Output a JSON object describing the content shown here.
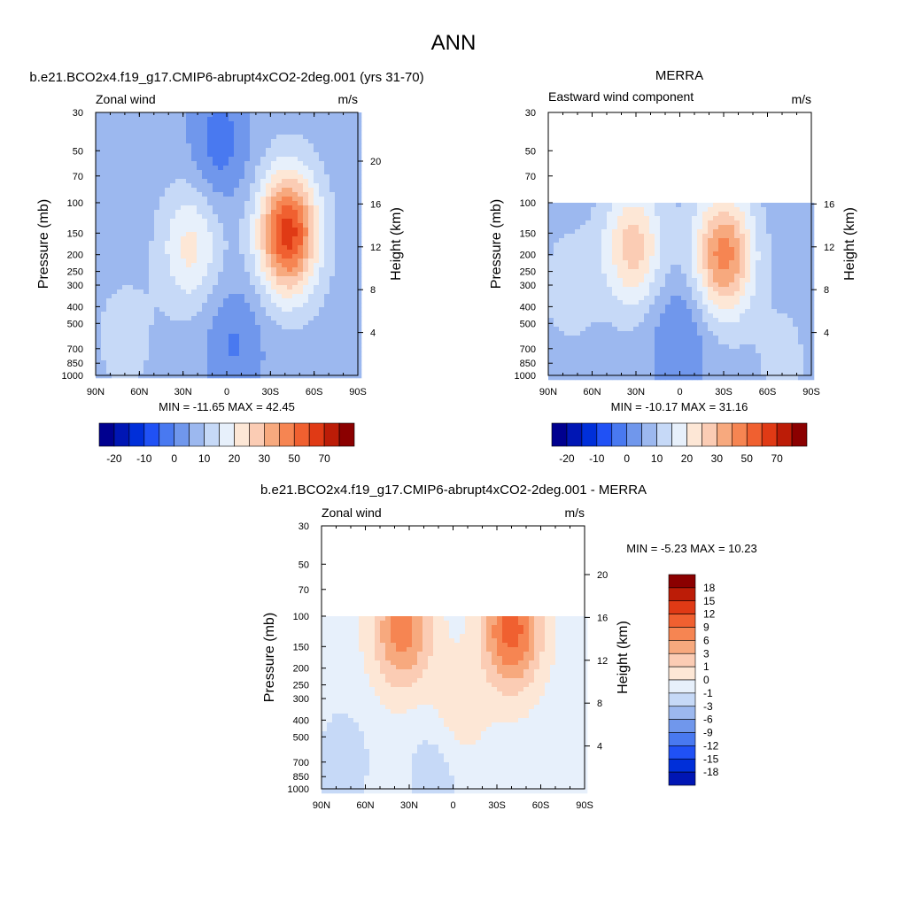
{
  "page_title": "ANN",
  "palette": [
    "#00008f",
    "#0016b4",
    "#002fd9",
    "#2051f5",
    "#4979f0",
    "#7097ec",
    "#9cb8ef",
    "#c6d9f7",
    "#e7f0fb",
    "#fde7d6",
    "#fbccb4",
    "#f7a97e",
    "#f68552",
    "#f06030",
    "#e03a15",
    "#bc1c07",
    "#8b0000"
  ],
  "neutral_color": "#ffffff",
  "chart_data": [
    {
      "type": "heatmap",
      "title": "b.e21.BCO2x4.f19_g17.CMIP6-abrupt4xCO2-2deg.001 (yrs 31-70)",
      "left_label": "Zonal wind",
      "units": "m/s",
      "ylabel": "Pressure (mb)",
      "ylabel_right": "Height (km)",
      "x_ticks": [
        "90N",
        "60N",
        "30N",
        "0",
        "30S",
        "60S",
        "90S"
      ],
      "y_ticks": [
        "30",
        "50",
        "70",
        "100",
        "150",
        "200",
        "250",
        "300",
        "400",
        "500",
        "700",
        "850",
        "1000"
      ],
      "y_right_ticks": [
        "20",
        "16",
        "12",
        "8",
        "4"
      ],
      "ylim": [
        1000,
        30
      ],
      "stats": "MIN = -11.65  MAX =  42.45",
      "colorbar_labels": [
        "-20",
        "-10",
        "0",
        "10",
        "20",
        "30",
        "50",
        "70"
      ],
      "data_top_mb": 30,
      "features": [
        {
          "lat": 25,
          "p": 180,
          "value": 14
        },
        {
          "lat": -42,
          "p": 150,
          "value": 40
        },
        {
          "lat": 5,
          "p": 45,
          "value": -10
        },
        {
          "lat": -5,
          "p": 650,
          "value": -8
        },
        {
          "lat": 70,
          "p": 600,
          "value": 5
        }
      ]
    },
    {
      "type": "heatmap",
      "title": "MERRA",
      "left_label": "Eastward wind component",
      "units": "m/s",
      "ylabel": "Pressure (mb)",
      "ylabel_right": "Height (km)",
      "x_ticks": [
        "90N",
        "60N",
        "30N",
        "0",
        "30S",
        "60S",
        "90S"
      ],
      "y_ticks": [
        "30",
        "50",
        "70",
        "100",
        "150",
        "200",
        "250",
        "300",
        "400",
        "500",
        "700",
        "850",
        "1000"
      ],
      "y_right_ticks": [
        "16",
        "12",
        "8",
        "4"
      ],
      "ylim": [
        1000,
        30
      ],
      "stats": "MIN = -10.17  MAX =  31.16",
      "colorbar_labels": [
        "-20",
        "-10",
        "0",
        "10",
        "20",
        "30",
        "50",
        "70"
      ],
      "data_top_mb": 100,
      "features": [
        {
          "lat": 32,
          "p": 180,
          "value": 20
        },
        {
          "lat": -30,
          "p": 200,
          "value": 30
        },
        {
          "lat": 0,
          "p": 600,
          "value": -8
        },
        {
          "lat": -70,
          "p": 800,
          "value": 4
        },
        {
          "lat": 75,
          "p": 300,
          "value": 5
        }
      ]
    },
    {
      "type": "heatmap",
      "title": "b.e21.BCO2x4.f19_g17.CMIP6-abrupt4xCO2-2deg.001 - MERRA",
      "left_label": "Zonal wind",
      "units": "m/s",
      "ylabel": "Pressure (mb)",
      "ylabel_right": "Height (km)",
      "x_ticks": [
        "90N",
        "60N",
        "30N",
        "0",
        "30S",
        "60S",
        "90S"
      ],
      "y_ticks": [
        "30",
        "50",
        "70",
        "100",
        "150",
        "200",
        "250",
        "300",
        "400",
        "500",
        "700",
        "850",
        "1000"
      ],
      "y_right_ticks": [
        "20",
        "16",
        "12",
        "8",
        "4"
      ],
      "ylim": [
        1000,
        30
      ],
      "stats": "MIN =  -5.23  MAX =  10.23",
      "colorbar_labels": [
        "18",
        "15",
        "12",
        "9",
        "6",
        "3",
        "1",
        "0",
        "-1",
        "-3",
        "-6",
        "-9",
        "-12",
        "-15",
        "-18"
      ],
      "data_top_mb": 100,
      "features": [
        {
          "lat": 35,
          "p": 120,
          "value": 8
        },
        {
          "lat": -40,
          "p": 120,
          "value": 10
        },
        {
          "lat": 0,
          "p": 400,
          "value": 3
        },
        {
          "lat": 10,
          "p": 700,
          "value": -3
        },
        {
          "lat": 75,
          "p": 700,
          "value": -2
        }
      ]
    }
  ]
}
